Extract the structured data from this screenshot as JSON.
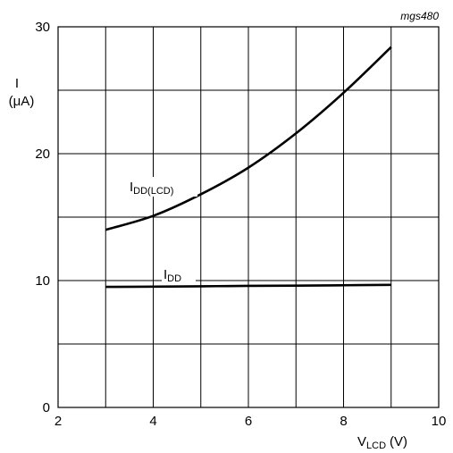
{
  "chart_data": {
    "type": "line",
    "figure_code": "mgs480",
    "xlim": [
      2,
      10
    ],
    "ylim": [
      0,
      30
    ],
    "x_ticks": [
      "2",
      "4",
      "6",
      "8",
      "10"
    ],
    "y_ticks": [
      "0",
      "10",
      "20",
      "30"
    ],
    "x_grid_step": 1,
    "y_grid_step": 5,
    "grid": true,
    "xlabel": {
      "main": "V",
      "sub": "LCD",
      "unit": "(V)"
    },
    "ylabel": {
      "main": "I",
      "unit": "(μA)"
    },
    "series": [
      {
        "name": "IDD(LCD)",
        "label_main": "I",
        "label_sub": "DD(LCD)",
        "x": [
          3,
          4,
          5,
          6,
          7,
          8,
          9
        ],
        "y": [
          14.0,
          15.1,
          16.8,
          18.9,
          21.6,
          24.8,
          28.4
        ]
      },
      {
        "name": "IDD",
        "label_main": "I",
        "label_sub": "DD",
        "x": [
          3,
          4,
          5,
          6,
          7,
          8,
          9
        ],
        "y": [
          9.5,
          9.52,
          9.55,
          9.58,
          9.6,
          9.63,
          9.66
        ]
      }
    ]
  }
}
